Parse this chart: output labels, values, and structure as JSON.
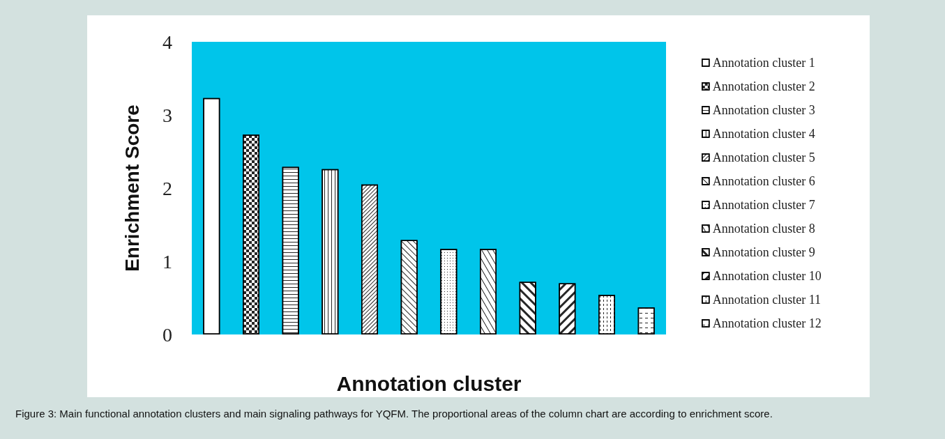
{
  "chart_data": {
    "type": "bar",
    "xlabel": "Annotation cluster",
    "ylabel": "Enrichment Score",
    "categories": [
      null,
      null,
      null,
      null,
      null,
      null,
      null,
      null,
      null,
      null,
      null,
      null
    ],
    "stacked": true,
    "series": [
      {
        "name": "Annotation cluster 1",
        "color": "#ffffff",
        "values": [
          3.23,
          null,
          null,
          null,
          null,
          null,
          null,
          null,
          null,
          null,
          null,
          null
        ]
      },
      {
        "name": "Annotation cluster 2",
        "color": "#ffffff",
        "values": [
          null,
          2.73,
          null,
          null,
          null,
          null,
          null,
          null,
          null,
          null,
          null,
          null
        ]
      },
      {
        "name": "Annotation cluster 3",
        "color": "#ffffff",
        "values": [
          null,
          null,
          2.29,
          null,
          null,
          null,
          null,
          null,
          null,
          null,
          null,
          null
        ]
      },
      {
        "name": "Annotation cluster 4",
        "color": "#ffffff",
        "values": [
          null,
          null,
          null,
          2.26,
          null,
          null,
          null,
          null,
          null,
          null,
          null,
          null
        ]
      },
      {
        "name": "Annotation cluster 5",
        "color": "#ffffff",
        "values": [
          null,
          null,
          null,
          null,
          2.05,
          null,
          null,
          null,
          null,
          null,
          null,
          null
        ]
      },
      {
        "name": "Annotation cluster 6",
        "color": "#ffffff",
        "values": [
          null,
          null,
          null,
          null,
          null,
          1.29,
          null,
          null,
          null,
          null,
          null,
          null
        ]
      },
      {
        "name": "Annotation cluster 7",
        "color": "#ffffff",
        "values": [
          null,
          null,
          null,
          null,
          null,
          null,
          1.17,
          null,
          null,
          null,
          null,
          null
        ]
      },
      {
        "name": "Annotation cluster 8",
        "color": "#ffffff",
        "values": [
          null,
          null,
          null,
          null,
          null,
          null,
          null,
          1.17,
          null,
          null,
          null,
          null
        ]
      },
      {
        "name": "Annotation cluster 9",
        "color": "#ffffff",
        "values": [
          null,
          null,
          null,
          null,
          null,
          null,
          null,
          null,
          0.72,
          null,
          null,
          null
        ]
      },
      {
        "name": "Annotation cluster 10",
        "color": "#ffffff",
        "values": [
          null,
          null,
          null,
          null,
          null,
          null,
          null,
          null,
          null,
          0.7,
          null,
          null
        ]
      },
      {
        "name": "Annotation cluster 11",
        "color": "#ffffff",
        "values": [
          null,
          null,
          null,
          null,
          null,
          null,
          null,
          null,
          null,
          null,
          0.54,
          null
        ]
      },
      {
        "name": "Annotation cluster 12",
        "color": "#ffffff",
        "values": [
          null,
          null,
          null,
          null,
          null,
          null,
          null,
          null,
          null,
          null,
          null,
          0.37
        ]
      }
    ],
    "ylim": [
      0,
      4
    ],
    "yticks": [
      0,
      1,
      2,
      3,
      4
    ],
    "grid": false,
    "legend": "right",
    "annotations": [
      "Figure 3: Main functional annotation clusters and main signaling pathways for YQFM. The proportional areas of the column chart are according to enrichment score."
    ]
  }
}
